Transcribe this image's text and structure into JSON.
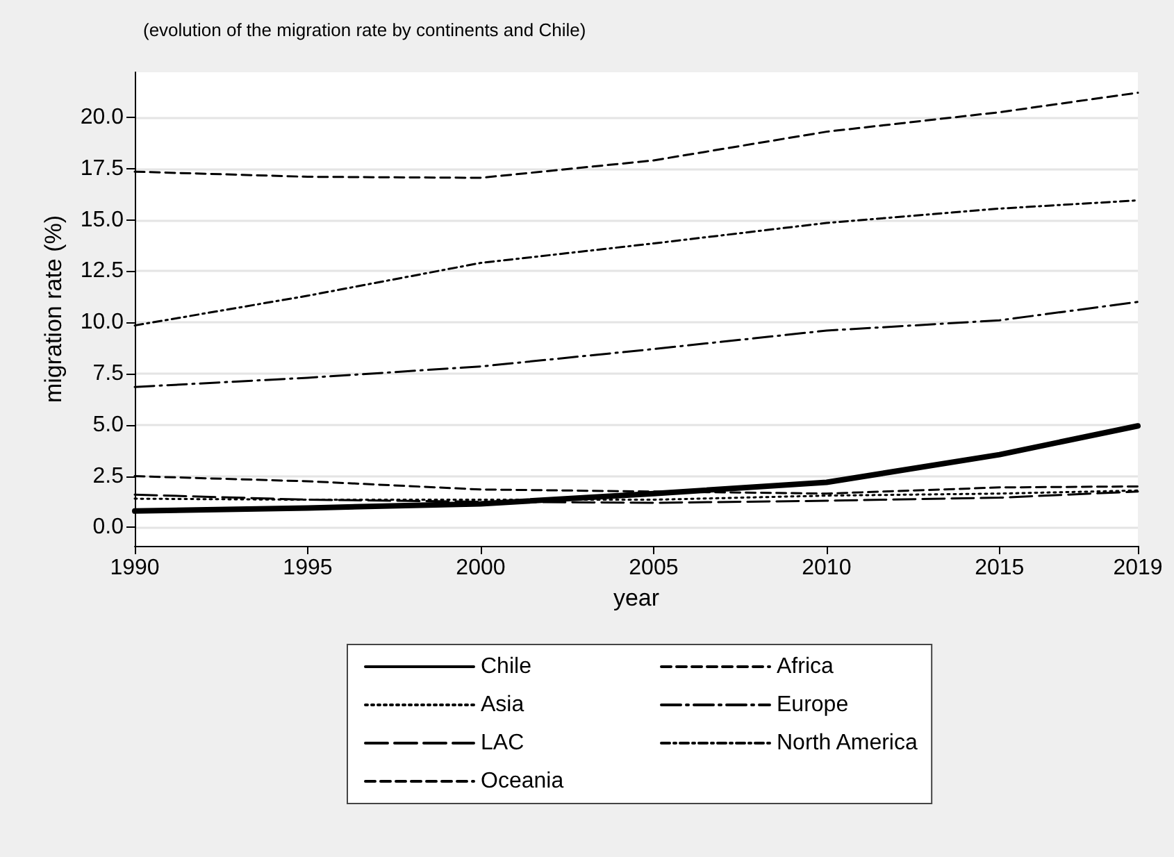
{
  "chart_data": {
    "type": "line",
    "title": "(evolution of the migration rate by continents and Chile)",
    "xlabel": "year",
    "ylabel": "migration rate (%)",
    "x": [
      1990,
      1995,
      2000,
      2005,
      2010,
      2015,
      2019
    ],
    "series": [
      {
        "name": "Chile",
        "color": "#000000",
        "line_style": "solid",
        "values": [
          0.8,
          0.95,
          1.15,
          1.65,
          2.2,
          3.55,
          4.95
        ]
      },
      {
        "name": "Africa",
        "color": "#000000",
        "line_style": "dashed",
        "values": [
          2.5,
          2.25,
          1.85,
          1.75,
          1.65,
          1.95,
          2.0
        ]
      },
      {
        "name": "Asia",
        "color": "#000000",
        "line_style": "dotted",
        "values": [
          1.4,
          1.35,
          1.35,
          1.35,
          1.55,
          1.65,
          1.8
        ]
      },
      {
        "name": "Europe",
        "color": "#000000",
        "line_style": "longdashdot",
        "values": [
          6.85,
          7.3,
          7.85,
          8.7,
          9.6,
          10.1,
          11.0
        ]
      },
      {
        "name": "LAC",
        "color": "#000000",
        "line_style": "longdash",
        "values": [
          1.6,
          1.35,
          1.25,
          1.2,
          1.3,
          1.45,
          1.75
        ]
      },
      {
        "name": "North America",
        "color": "#000000",
        "line_style": "dashdot",
        "values": [
          9.85,
          11.3,
          12.9,
          13.85,
          14.85,
          15.55,
          15.95
        ]
      },
      {
        "name": "Oceania",
        "color": "#000000",
        "line_style": "dashed",
        "values": [
          17.35,
          17.1,
          17.05,
          17.9,
          19.3,
          20.25,
          21.2
        ]
      }
    ],
    "xlim": [
      1990,
      2019
    ],
    "xticks": [
      1990,
      1995,
      2000,
      2005,
      2010,
      2015,
      2019
    ],
    "ylim": [
      -0.9,
      22.2
    ],
    "yticks": [
      {
        "value": 0,
        "label": "0.0"
      },
      {
        "value": 2.5,
        "label": "2.5"
      },
      {
        "value": 5,
        "label": "5.0"
      },
      {
        "value": 7.5,
        "label": "7.5"
      },
      {
        "value": 10,
        "label": "10.0"
      },
      {
        "value": 12.5,
        "label": "12.5"
      },
      {
        "value": 15,
        "label": "15.0"
      },
      {
        "value": 17.5,
        "label": "17.5"
      },
      {
        "value": 20,
        "label": "20.0"
      }
    ],
    "grid": "y",
    "legend": "bottom",
    "marker": "none"
  }
}
